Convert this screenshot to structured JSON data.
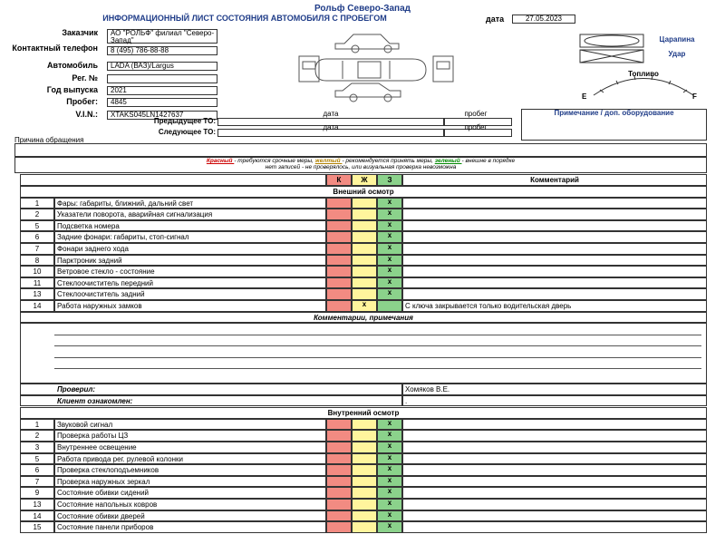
{
  "header": {
    "company": "Рольф Северо-Запад",
    "title": "ИНФОРМАЦИОННЫЙ ЛИСТ СОСТОЯНИЯ АВТОМОБИЛЯ С ПРОБЕГОМ",
    "date_label": "дата",
    "date": "27.05.2023"
  },
  "fields": [
    {
      "label": "Заказчик",
      "value": "АО \"РОЛЬФ\" филиал \"Северо-Запад\""
    },
    {
      "label": "Контактный телефон",
      "value": "8 (495) 786-88-88"
    },
    {
      "label": "Автомобиль",
      "value": "LADA (ВАЗ)/Largus"
    },
    {
      "label": "Рег. №"
    },
    {
      "label": "Год выпуска",
      "value": "2021"
    },
    {
      "label": "Пробег:",
      "value": "4845"
    },
    {
      "label": "V.I.N.:",
      "value": "XTAKS045LN1427637"
    }
  ],
  "service": [
    {
      "label": "Предыдущее ТО:",
      "date_label": "дата",
      "mileage_label": "пробег"
    },
    {
      "label": "Следующее ТО:",
      "date_label": "дата",
      "mileage_label": "пробег"
    }
  ],
  "damage_legend": {
    "scratch": "Царапина",
    "dent": "Удар"
  },
  "fuel": {
    "label": "Топливо",
    "empty": "E",
    "full": "F"
  },
  "note_label": "Примечание / доп. оборудование",
  "reason_label": "Причина обращения",
  "legend": {
    "red": "Красный",
    "red_text": "- требуются срочные меры,",
    "yellow": "желтый",
    "yellow_text": "- рекомендуется принять меры,",
    "green": "зеленый",
    "green_text": "- внешне в порядке",
    "none": "нет записей",
    "none_text": "- не проверялось, или визуальная проверка невозможна"
  },
  "table": {
    "columns": [
      "К",
      "Ж",
      "З",
      "Комментарий"
    ],
    "sections": [
      {
        "title": "Внешний осмотр",
        "rows": [
          {
            "num": "1",
            "label": "Фары: габариты, ближний, дальний свет",
            "check": "х",
            "status": "green"
          },
          {
            "num": "2",
            "label": "Указатели поворота, аварийная сигнализация",
            "check": "х",
            "status": "green"
          },
          {
            "num": "5",
            "label": "Подсветка номера",
            "check": "х",
            "status": "green"
          },
          {
            "num": "6",
            "label": "Задние фонари: габариты, стоп-сигнал",
            "check": "х",
            "status": "green"
          },
          {
            "num": "7",
            "label": "Фонари заднего хода",
            "check": "х",
            "status": "green"
          },
          {
            "num": "8",
            "label": "Парктроник задний",
            "check": "х",
            "status": "green"
          },
          {
            "num": "10",
            "label": "Ветровое стекло - состояние",
            "check": "х",
            "status": "green"
          },
          {
            "num": "11",
            "label": "Стеклоочиститель передний",
            "check": "х",
            "status": "green"
          },
          {
            "num": "13",
            "label": "Стеклоочиститель задний",
            "check": "х",
            "status": "green"
          },
          {
            "num": "14",
            "label": "Работа наружных замков",
            "check": "х",
            "status": "yellow",
            "comment": "С ключа закрывается только водительская дверь"
          }
        ]
      },
      {
        "title": "Внутренний осмотр",
        "rows": [
          {
            "num": "1",
            "label": "Звуковой сигнал",
            "check": "х",
            "status": "green"
          },
          {
            "num": "2",
            "label": "Проверка работы ЦЗ",
            "check": "х",
            "status": "green"
          },
          {
            "num": "3",
            "label": "Внутреннее освещение",
            "check": "х",
            "status": "green"
          },
          {
            "num": "5",
            "label": "Работа привода рег. рулевой колонки",
            "check": "х",
            "status": "green"
          },
          {
            "num": "6",
            "label": "Проверка стеклоподъемников",
            "check": "х",
            "status": "green"
          },
          {
            "num": "7",
            "label": "Проверка наружных зеркал",
            "check": "х",
            "status": "green"
          },
          {
            "num": "9",
            "label": "Состояние обивки сидений",
            "check": "х",
            "status": "green"
          },
          {
            "num": "13",
            "label": "Состояние напольных ковров",
            "check": "х",
            "status": "green"
          },
          {
            "num": "14",
            "label": "Состояние обивки дверей",
            "check": "х",
            "status": "green"
          },
          {
            "num": "15",
            "label": "Состояние панели приборов",
            "check": "х",
            "status": "green"
          }
        ]
      }
    ]
  },
  "comments": {
    "title": "Комментарии, примечания",
    "checked_label": "Проверил:",
    "checked_value": "Хомяков В.Е.",
    "client_label": "Клиент ознакомлен:",
    "client_value": "."
  }
}
